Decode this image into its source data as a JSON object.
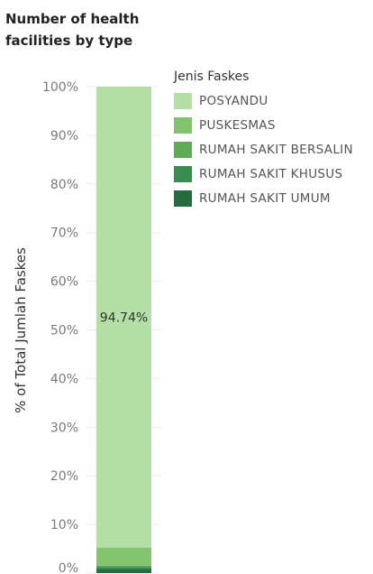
{
  "title": "Number of health facilities by type",
  "chart_data": {
    "type": "bar",
    "stacked": true,
    "categories": [
      ""
    ],
    "series": [
      {
        "name": "RUMAH SAKIT UMUM",
        "values": [
          0.9
        ],
        "color": "#246b3d"
      },
      {
        "name": "RUMAH SAKIT KHUSUS",
        "values": [
          0.3
        ],
        "color": "#3a8c4f"
      },
      {
        "name": "RUMAH SAKIT BERSALIN",
        "values": [
          0.3
        ],
        "color": "#5faa55"
      },
      {
        "name": "PUSKESMAS",
        "values": [
          3.76
        ],
        "color": "#82c46e"
      },
      {
        "name": "POSYANDU",
        "values": [
          94.74
        ],
        "color": "#b5e0a5"
      }
    ],
    "data_labels": [
      {
        "series": "POSYANDU",
        "text": "94.74%"
      }
    ],
    "ylabel": "% of Total Jumlah Faskes",
    "xlabel": "",
    "ylim": [
      0,
      100
    ],
    "yticks": [
      {
        "value": 0,
        "label": "0%"
      },
      {
        "value": 10,
        "label": "10%"
      },
      {
        "value": 20,
        "label": "20%"
      },
      {
        "value": 30,
        "label": "30%"
      },
      {
        "value": 40,
        "label": "40%"
      },
      {
        "value": 50,
        "label": "50%"
      },
      {
        "value": 60,
        "label": "60%"
      },
      {
        "value": 70,
        "label": "70%"
      },
      {
        "value": 80,
        "label": "80%"
      },
      {
        "value": 90,
        "label": "90%"
      },
      {
        "value": 100,
        "label": "100%"
      }
    ],
    "grid": true,
    "legend_position": "right"
  },
  "legend": {
    "title": "Jenis Faskes",
    "items": [
      {
        "label": "POSYANDU",
        "color": "#b5e0a5"
      },
      {
        "label": "PUSKESMAS",
        "color": "#82c46e"
      },
      {
        "label": "RUMAH SAKIT BERSALIN",
        "color": "#5faa55"
      },
      {
        "label": "RUMAH SAKIT KHUSUS",
        "color": "#3a8c4f"
      },
      {
        "label": "RUMAH SAKIT UMUM",
        "color": "#246b3d"
      }
    ]
  }
}
